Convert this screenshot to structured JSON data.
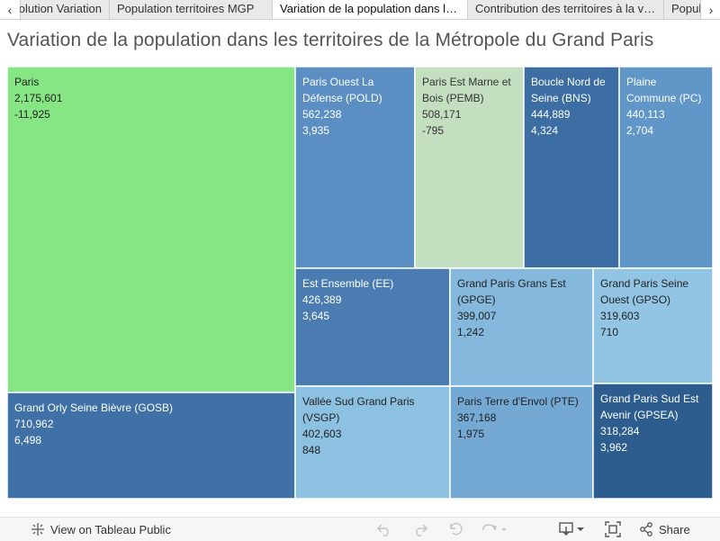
{
  "tabs": {
    "prev_icon": "chevron-left-icon",
    "next_icon": "chevron-right-icon",
    "items": [
      {
        "label": "Évolution Variation"
      },
      {
        "label": "Population territoires MGP"
      },
      {
        "label": "Variation de la population dans les territoires de la Métropole du Grand Paris"
      },
      {
        "label": "Contribution des territoires à la variation"
      },
      {
        "label": "Population"
      }
    ]
  },
  "chart_data": {
    "type": "treemap",
    "title": "Variation de la population dans les territoires de la Métropole du Grand Paris",
    "size_measure": "population",
    "color_measure": "variation",
    "colors": {
      "paris": "#86e683",
      "pemb": "#c2dfc0",
      "light_blue": "#8dc1e1",
      "mid_blue": "#5a8fc2",
      "dark_blue": "#2d5e8f"
    },
    "nodes": [
      {
        "name": "Paris",
        "population": "2,175,601",
        "variation": "-11,925",
        "color": "#86e683",
        "text_color": "#222222"
      },
      {
        "name": "Paris Ouest La Défense (POLD)",
        "population": "562,238",
        "variation": "3,935",
        "color": "#5b8fc3",
        "text_color": "#ffffff"
      },
      {
        "name": "Paris Est Marne et Bois (PEMB)",
        "population": "508,171",
        "variation": "-795",
        "color": "#c3dfc0",
        "text_color": "#333333"
      },
      {
        "name": "Boucle Nord de Seine (BNS)",
        "population": "444,889",
        "variation": "4,324",
        "color": "#3c6da3",
        "text_color": "#ffffff"
      },
      {
        "name": "Plaine Commune (PC)",
        "population": "440,113",
        "variation": "2,704",
        "color": "#6196c8",
        "text_color": "#ffffff"
      },
      {
        "name": "Grand Orly Seine Bièvre (GOSB)",
        "population": "710,962",
        "variation": "6,498",
        "color": "#3f70a6",
        "text_color": "#ffffff"
      },
      {
        "name": "Est Ensemble (EE)",
        "population": "426,389",
        "variation": "3,645",
        "color": "#4a7cb1",
        "text_color": "#ffffff"
      },
      {
        "name": "Grand Paris Grans Est (GPGE)",
        "population": "399,007",
        "variation": "1,242",
        "color": "#84b8dc",
        "text_color": "#222222"
      },
      {
        "name": "Grand Paris Seine Ouest (GPSO)",
        "population": "319,603",
        "variation": "710",
        "color": "#92c4e3",
        "text_color": "#222222"
      },
      {
        "name": "Vallée Sud Grand Paris (VSGP)",
        "population": "402,603",
        "variation": "848",
        "color": "#8dc1e1",
        "text_color": "#222222"
      },
      {
        "name": "Paris Terre d'Envol (PTE)",
        "population": "367,168",
        "variation": "1,975",
        "color": "#74a9d4",
        "text_color": "#222222"
      },
      {
        "name": "Grand Paris Sud Est Avenir (GPSEA)",
        "population": "318,284",
        "variation": "3,962",
        "color": "#2c5d8e",
        "text_color": "#ffffff"
      }
    ]
  },
  "toolbar": {
    "view_label": "View on Tableau Public",
    "share_label": "Share",
    "view_icon": "tableau-logo-icon",
    "undo_icon": "undo-icon",
    "redo_icon": "redo-icon",
    "revert_icon": "revert-icon",
    "refresh_icon": "refresh-icon",
    "download_icon": "download-icon",
    "fullscreen_icon": "fullscreen-icon",
    "share_icon": "share-icon"
  }
}
